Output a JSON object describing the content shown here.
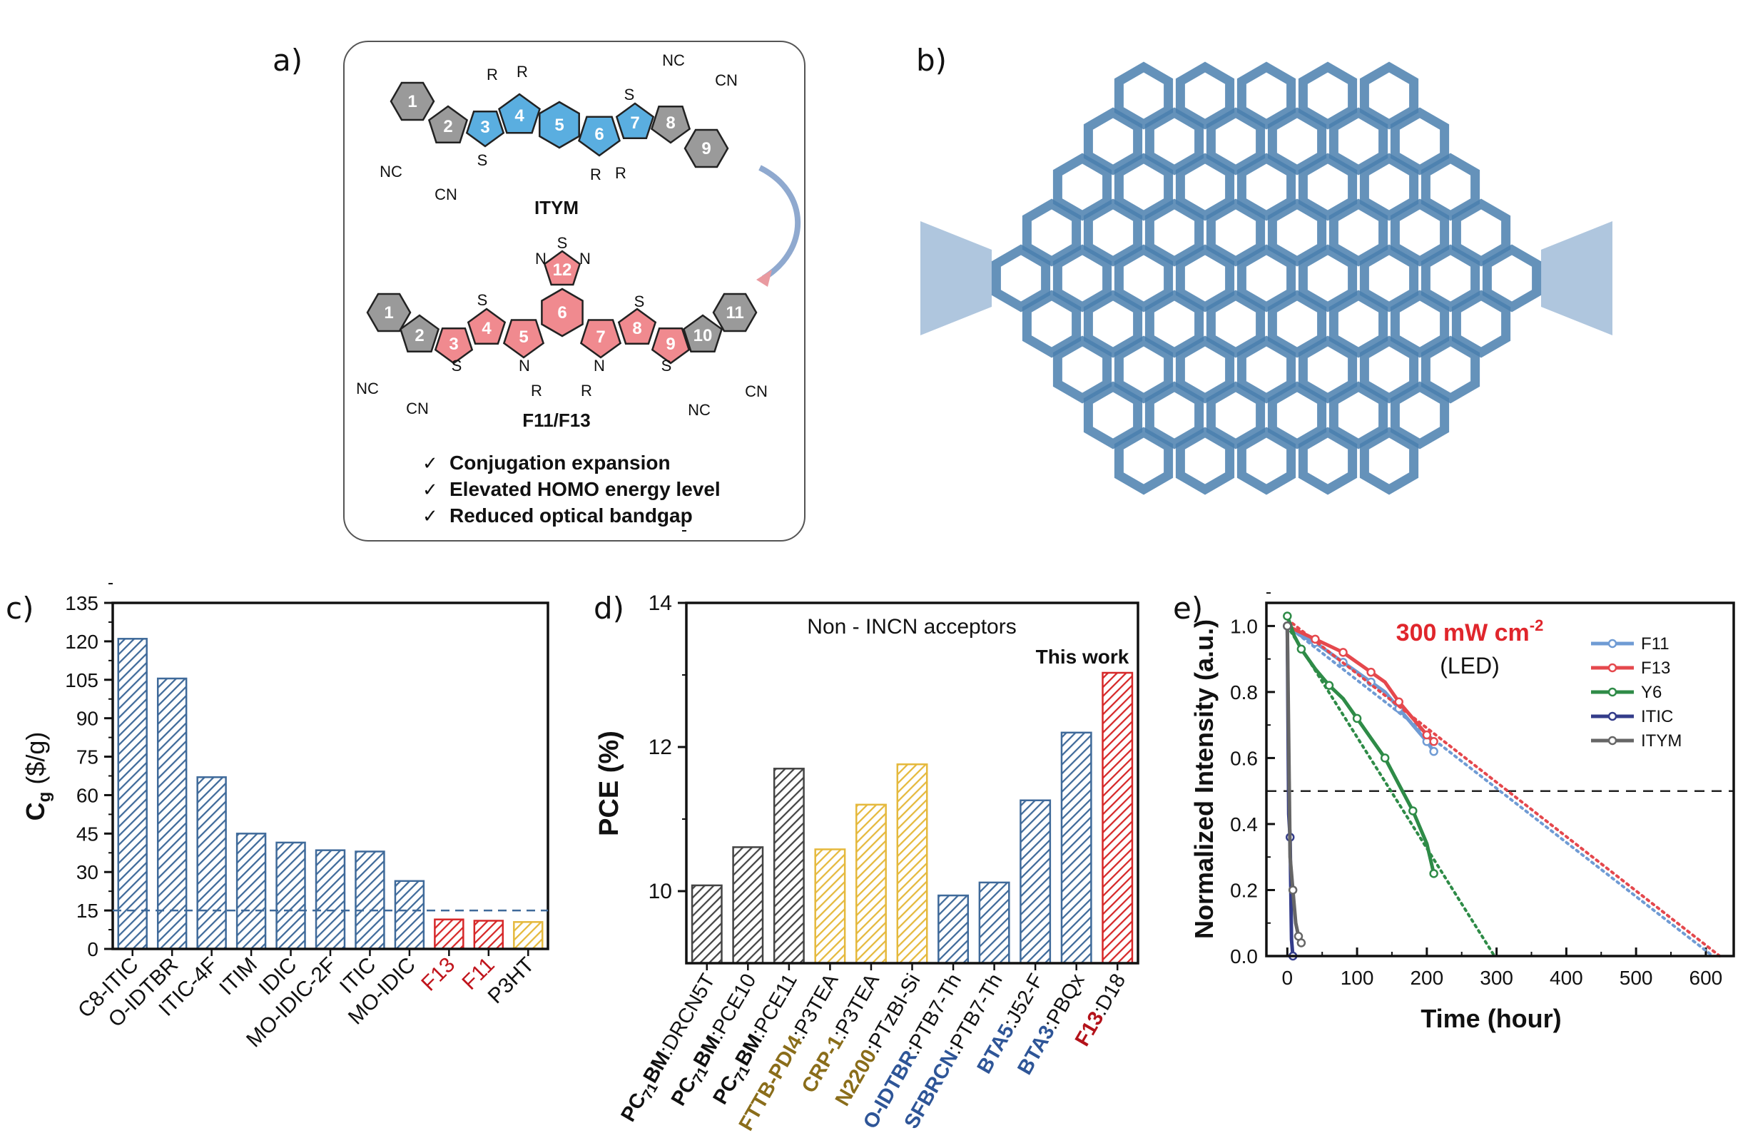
{
  "panels": {
    "a": "a)",
    "b": "b)",
    "c": "c)",
    "d": "d)",
    "e": "e)"
  },
  "panel_a": {
    "molecule1": "ITYM",
    "molecule2": "F11/F13",
    "ring_numbers_top": [
      "1",
      "2",
      "3",
      "4",
      "5",
      "6",
      "7",
      "8",
      "9"
    ],
    "ring_numbers_bottom": [
      "1",
      "2",
      "3",
      "4",
      "5",
      "6",
      "7",
      "8",
      "9",
      "10",
      "11",
      "12"
    ],
    "groups": {
      "R": "R",
      "S": "S",
      "N": "N",
      "NC": "NC",
      "CN": "CN"
    },
    "features": [
      "Conjugation expansion",
      "Elevated HOMO energy level",
      "Reduced optical bandgap"
    ],
    "check": "✓",
    "colors": {
      "top_ring": "#5aaee0",
      "bottom_ring": "#f08a8f",
      "grey_ring": "#9a9a9a"
    }
  },
  "chart_data": [
    {
      "panel": "c",
      "type": "bar",
      "ylabel": "C",
      "ylabel_sub": "g",
      "ylabel_unit": " ($/g)",
      "ylim": [
        0,
        135
      ],
      "yticks": [
        0,
        15,
        30,
        45,
        60,
        75,
        90,
        105,
        120,
        135
      ],
      "reference_line": 15,
      "categories": [
        "C8-ITIC",
        "O-IDTBR",
        "ITIC-4F",
        "ITIM",
        "IDIC",
        "MO-IDIC-2F",
        "ITIC",
        "MO-IDIC",
        "F13",
        "F11",
        "P3HT"
      ],
      "values": [
        121,
        105.5,
        67,
        45,
        41.5,
        38.5,
        38,
        26.5,
        11.5,
        11,
        10.5
      ],
      "bar_colors": [
        "#3f6a9a",
        "#3f6a9a",
        "#3f6a9a",
        "#3f6a9a",
        "#3f6a9a",
        "#3f6a9a",
        "#3f6a9a",
        "#3f6a9a",
        "#d62728",
        "#d62728",
        "#e5b93d"
      ],
      "label_colors": [
        "#111",
        "#111",
        "#111",
        "#111",
        "#111",
        "#111",
        "#111",
        "#111",
        "#c0141c",
        "#c0141c",
        "#111"
      ]
    },
    {
      "panel": "d",
      "type": "bar",
      "title": "Non - INCN acceptors",
      "annotation": "This work",
      "ylabel": "PCE (%)",
      "ylim": [
        9,
        14
      ],
      "yticks": [
        10,
        12,
        14
      ],
      "categories": [
        {
          "a": "PC",
          "sub": "71",
          "b": "BM",
          ":": ":",
          "c": "DRCN5T"
        },
        {
          "a": "PC",
          "sub": "71",
          "b": "BM",
          ":": ":",
          "c": "PCE10"
        },
        {
          "a": "PC",
          "sub": "71",
          "b": "BM",
          ":": ":",
          "c": "PCE11"
        },
        {
          "a": "FTTB-PDI4",
          "sub": "",
          "b": "",
          ":": ":",
          "c": "P3TEA"
        },
        {
          "a": "CRP-1",
          "sub": "",
          "b": "",
          ":": ":",
          "c": "P3TEA"
        },
        {
          "a": "N2200",
          "sub": "",
          "b": "",
          ":": ":",
          "c": "PTzBI-Si"
        },
        {
          "a": "O-IDTBR",
          "sub": "",
          "b": "",
          ":": ":",
          "c": "PTB7-Th"
        },
        {
          "a": "SFBRCN",
          "sub": "",
          "b": "",
          ":": ":",
          "c": "PTB7-Th"
        },
        {
          "a": "BTA5",
          "sub": "",
          "b": "",
          ":": ":",
          "c": "J52-F"
        },
        {
          "a": "BTA3",
          "sub": "",
          "b": "",
          ":": ":",
          "c": "PBQx"
        },
        {
          "a": "F13",
          "sub": "",
          "b": "",
          ":": ":",
          "c": "D18"
        }
      ],
      "values": [
        10.08,
        10.61,
        11.7,
        10.58,
        11.2,
        11.76,
        9.94,
        10.12,
        11.26,
        12.2,
        13.03
      ],
      "bar_colors": [
        "#444",
        "#444",
        "#444",
        "#e5b93d",
        "#e5b93d",
        "#e5b93d",
        "#3f6a9a",
        "#3f6a9a",
        "#3f6a9a",
        "#3f6a9a",
        "#d62728"
      ],
      "label_colors": [
        "#111",
        "#111",
        "#111",
        "#8a6d1a",
        "#8a6d1a",
        "#8a6d1a",
        "#2e5597",
        "#2e5597",
        "#2e5597",
        "#2e5597",
        "#b3121a"
      ]
    },
    {
      "panel": "e",
      "type": "line",
      "annotation_main": "300 mW cm",
      "annotation_sup": "-2",
      "annotation_sub": "(LED)",
      "xlabel": "Time (hour)",
      "ylabel": "Normalized Intensity (a.u.)",
      "xlim": [
        -30,
        640
      ],
      "ylim": [
        0,
        1.07
      ],
      "xticks": [
        0,
        100,
        200,
        300,
        400,
        500,
        600
      ],
      "yticks": [
        0.0,
        0.2,
        0.4,
        0.6,
        0.8,
        1.0
      ],
      "reference_line": 0.5,
      "legend_position": "top-right",
      "series": [
        {
          "name": "F11",
          "color": "#6f9bd4",
          "x": [
            0,
            20,
            40,
            60,
            80,
            100,
            120,
            140,
            160,
            180,
            200,
            210
          ],
          "y": [
            1.0,
            0.97,
            0.95,
            0.92,
            0.89,
            0.86,
            0.83,
            0.8,
            0.75,
            0.7,
            0.65,
            0.62
          ],
          "fit": [
            [
              0,
              1.0
            ],
            [
              610,
              0.0
            ]
          ]
        },
        {
          "name": "F13",
          "color": "#e5484d",
          "x": [
            0,
            20,
            40,
            60,
            80,
            100,
            120,
            140,
            160,
            180,
            200,
            210
          ],
          "y": [
            1.0,
            0.98,
            0.96,
            0.94,
            0.92,
            0.89,
            0.86,
            0.83,
            0.77,
            0.72,
            0.67,
            0.65
          ],
          "fit": [
            [
              0,
              1.02
            ],
            [
              620,
              0.0
            ]
          ]
        },
        {
          "name": "Y6",
          "color": "#2e8b47",
          "x": [
            0,
            10,
            20,
            40,
            60,
            80,
            100,
            120,
            140,
            160,
            180,
            200,
            210
          ],
          "y": [
            1.03,
            0.97,
            0.93,
            0.87,
            0.82,
            0.78,
            0.72,
            0.66,
            0.6,
            0.52,
            0.44,
            0.34,
            0.25
          ],
          "fit": [
            [
              0,
              1.0
            ],
            [
              297,
              0.0
            ]
          ]
        },
        {
          "name": "ITIC",
          "color": "#333c8a",
          "x": [
            0,
            2,
            4,
            6,
            8
          ],
          "y": [
            1.0,
            0.43,
            0.36,
            0.05,
            0.0
          ],
          "fit": null
        },
        {
          "name": "ITYM",
          "color": "#666",
          "x": [
            0,
            4,
            8,
            12,
            16,
            20
          ],
          "y": [
            1.0,
            0.3,
            0.2,
            0.1,
            0.06,
            0.04
          ],
          "fit": null
        }
      ]
    }
  ]
}
